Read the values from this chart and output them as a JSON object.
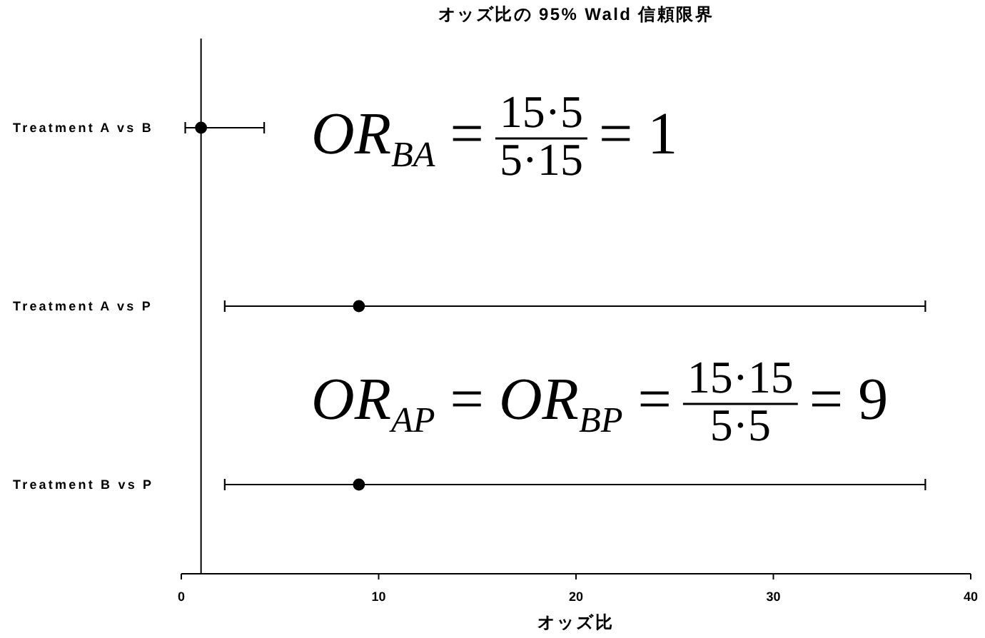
{
  "chart_data": {
    "type": "scatter",
    "orientation": "horizontal",
    "title": "オッズ比の 95% Wald 信頼限界",
    "xlabel": "オッズ比",
    "categories": [
      "Treatment A vs B",
      "Treatment A vs P",
      "Treatment B vs P"
    ],
    "values": [
      1,
      9,
      9
    ],
    "errors": [
      [
        0.2,
        4.2
      ],
      [
        2.2,
        37.7
      ],
      [
        2.2,
        37.7
      ]
    ],
    "color": "#000000",
    "marker": "circle",
    "xlim": [
      0,
      40
    ],
    "xticks": [
      0,
      10,
      20,
      30,
      40
    ],
    "ref_lines": [
      {
        "axis": "x",
        "value": 1
      }
    ],
    "annotations": [
      "OR$_{BA}$ =",
      "15·5",
      "5·15",
      "= 1",
      "OR$_{AP}$ = OR$_{BP}$ =",
      "15·15",
      "5·5",
      "= 9"
    ]
  }
}
